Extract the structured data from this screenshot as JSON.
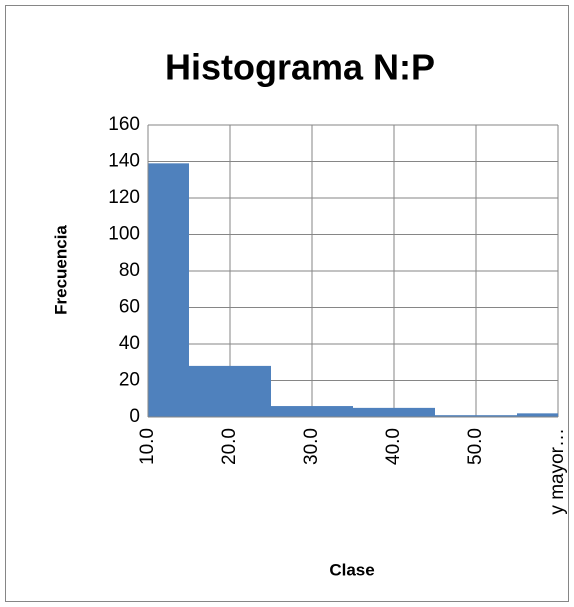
{
  "chart_data": {
    "type": "bar",
    "title": "Histograma N:P",
    "x_label": "Clase",
    "y_label": "Frecuencia",
    "categories": [
      "10.0",
      "20.0",
      "30.0",
      "40.0",
      "50.0",
      "y mayor…"
    ],
    "values": [
      139,
      28,
      6,
      5,
      1,
      2
    ],
    "color": "#4f81bd",
    "ylim": [
      0,
      160
    ],
    "yticks": [
      0,
      20,
      40,
      60,
      80,
      100,
      120,
      140,
      160
    ],
    "grid": true
  }
}
